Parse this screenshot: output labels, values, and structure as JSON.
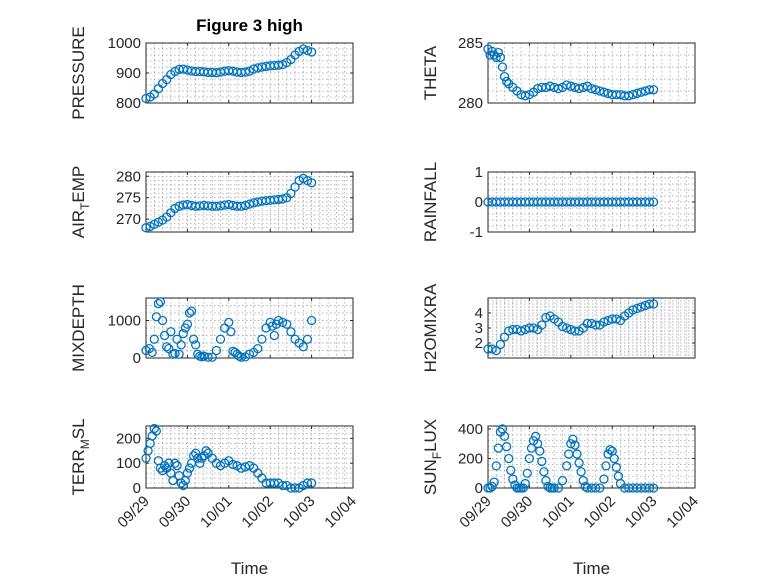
{
  "chart_data": [
    {
      "type": "scatter",
      "title": "Figure 3 high",
      "ylabel": "PRESSURE",
      "xlabel": "",
      "xlim": [
        0,
        5
      ],
      "xticks": [
        0,
        1,
        2,
        3,
        4,
        5
      ],
      "xtick_labels": [
        "09/29",
        "09/30",
        "10/01",
        "10/02",
        "10/03",
        "10/04"
      ],
      "ylim": [
        800,
        1000
      ],
      "yticks": [
        800,
        900,
        1000
      ],
      "ytick_labels": [
        "800",
        "900",
        "1000"
      ],
      "series": [
        {
          "name": "PRESSURE",
          "x": [
            0.0,
            0.1,
            0.2,
            0.3,
            0.4,
            0.5,
            0.6,
            0.7,
            0.8,
            0.9,
            1.0,
            1.1,
            1.2,
            1.3,
            1.4,
            1.5,
            1.6,
            1.7,
            1.8,
            1.9,
            2.0,
            2.1,
            2.2,
            2.3,
            2.4,
            2.5,
            2.6,
            2.7,
            2.8,
            2.9,
            3.0,
            3.1,
            3.2,
            3.3,
            3.4,
            3.5,
            3.6,
            3.7,
            3.8,
            3.9,
            4.0
          ],
          "y": [
            815,
            820,
            830,
            848,
            865,
            878,
            895,
            905,
            912,
            913,
            910,
            907,
            905,
            905,
            904,
            902,
            902,
            901,
            903,
            906,
            908,
            906,
            903,
            902,
            903,
            906,
            913,
            917,
            920,
            922,
            924,
            925,
            926,
            928,
            935,
            945,
            960,
            972,
            980,
            975,
            970
          ]
        }
      ]
    },
    {
      "type": "scatter",
      "title": "",
      "ylabel": "THETA",
      "xlabel": "",
      "xlim": [
        0,
        5
      ],
      "xticks": [
        0,
        1,
        2,
        3,
        4,
        5
      ],
      "xtick_labels": [
        "09/29",
        "09/30",
        "10/01",
        "10/02",
        "10/03",
        "10/04"
      ],
      "ylim": [
        280,
        285
      ],
      "yticks": [
        280,
        285
      ],
      "ytick_labels": [
        "280",
        "285"
      ],
      "series": [
        {
          "name": "THETA",
          "x": [
            0.0,
            0.05,
            0.1,
            0.15,
            0.2,
            0.25,
            0.3,
            0.35,
            0.4,
            0.45,
            0.5,
            0.6,
            0.7,
            0.8,
            0.9,
            1.0,
            1.1,
            1.2,
            1.3,
            1.4,
            1.5,
            1.6,
            1.7,
            1.8,
            1.9,
            2.0,
            2.1,
            2.2,
            2.3,
            2.4,
            2.5,
            2.6,
            2.7,
            2.8,
            2.9,
            3.0,
            3.1,
            3.2,
            3.3,
            3.4,
            3.5,
            3.6,
            3.7,
            3.8,
            3.9,
            4.0
          ],
          "y": [
            284.5,
            284.0,
            284.3,
            284.0,
            283.8,
            284.2,
            283.8,
            283.0,
            282.2,
            281.8,
            281.6,
            281.3,
            281.0,
            280.7,
            280.6,
            280.7,
            280.9,
            281.2,
            281.3,
            281.3,
            281.4,
            281.3,
            281.2,
            281.3,
            281.5,
            281.4,
            281.3,
            281.2,
            281.3,
            281.4,
            281.2,
            281.1,
            281.0,
            280.9,
            280.8,
            280.7,
            280.7,
            280.7,
            280.6,
            280.6,
            280.7,
            280.8,
            280.9,
            281.0,
            281.1,
            281.1
          ]
        }
      ]
    },
    {
      "type": "scatter",
      "title": "",
      "ylabel": "AIR_TEMP",
      "ylabel_display": {
        "base": "AIR",
        "sub": "T",
        "rest": "EMP"
      },
      "xlabel": "",
      "xlim": [
        0,
        5
      ],
      "xticks": [
        0,
        1,
        2,
        3,
        4,
        5
      ],
      "xtick_labels": [
        "09/29",
        "09/30",
        "10/01",
        "10/02",
        "10/03",
        "10/04"
      ],
      "ylim": [
        267,
        281
      ],
      "yticks": [
        270,
        275,
        280
      ],
      "ytick_labels": [
        "270",
        "275",
        "280"
      ],
      "series": [
        {
          "name": "AIR_TEMP",
          "x": [
            0.0,
            0.1,
            0.2,
            0.3,
            0.4,
            0.5,
            0.6,
            0.7,
            0.8,
            0.9,
            1.0,
            1.1,
            1.2,
            1.3,
            1.4,
            1.5,
            1.6,
            1.7,
            1.8,
            1.9,
            2.0,
            2.1,
            2.2,
            2.3,
            2.4,
            2.5,
            2.6,
            2.7,
            2.8,
            2.9,
            3.0,
            3.1,
            3.2,
            3.3,
            3.4,
            3.5,
            3.6,
            3.7,
            3.8,
            3.9,
            4.0
          ],
          "y": [
            268.0,
            268.3,
            268.8,
            269.3,
            269.8,
            270.5,
            271.5,
            272.5,
            273.0,
            273.3,
            273.4,
            273.2,
            273.0,
            273.1,
            273.2,
            273.1,
            273.0,
            273.0,
            273.1,
            273.3,
            273.4,
            273.2,
            273.0,
            273.0,
            273.2,
            273.5,
            273.8,
            274.0,
            274.2,
            274.3,
            274.4,
            274.5,
            274.6,
            274.7,
            275.0,
            276.0,
            277.5,
            279.0,
            279.5,
            279.0,
            278.5
          ]
        }
      ]
    },
    {
      "type": "scatter",
      "title": "",
      "ylabel": "RAINFALL",
      "xlabel": "",
      "xlim": [
        0,
        5
      ],
      "xticks": [
        0,
        1,
        2,
        3,
        4,
        5
      ],
      "xtick_labels": [
        "09/29",
        "09/30",
        "10/01",
        "10/02",
        "10/03",
        "10/04"
      ],
      "ylim": [
        -1,
        1
      ],
      "yticks": [
        -1,
        0,
        1
      ],
      "ytick_labels": [
        "-1",
        "0",
        "1"
      ],
      "series": [
        {
          "name": "RAINFALL",
          "x": [
            0.0,
            0.1,
            0.2,
            0.3,
            0.4,
            0.5,
            0.6,
            0.7,
            0.8,
            0.9,
            1.0,
            1.1,
            1.2,
            1.3,
            1.4,
            1.5,
            1.6,
            1.7,
            1.8,
            1.9,
            2.0,
            2.1,
            2.2,
            2.3,
            2.4,
            2.5,
            2.6,
            2.7,
            2.8,
            2.9,
            3.0,
            3.1,
            3.2,
            3.3,
            3.4,
            3.5,
            3.6,
            3.7,
            3.8,
            3.9,
            4.0
          ],
          "y": [
            0,
            0,
            0,
            0,
            0,
            0,
            0,
            0,
            0,
            0,
            0,
            0,
            0,
            0,
            0,
            0,
            0,
            0,
            0,
            0,
            0,
            0,
            0,
            0,
            0,
            0,
            0,
            0,
            0,
            0,
            0,
            0,
            0,
            0,
            0,
            0,
            0,
            0,
            0,
            0,
            0
          ]
        }
      ]
    },
    {
      "type": "scatter",
      "title": "",
      "ylabel": "MIXDEPTH",
      "xlabel": "",
      "xlim": [
        0,
        5
      ],
      "xticks": [
        0,
        1,
        2,
        3,
        4,
        5
      ],
      "xtick_labels": [
        "09/29",
        "09/30",
        "10/01",
        "10/02",
        "10/03",
        "10/04"
      ],
      "ylim": [
        0,
        1600
      ],
      "yticks": [
        0,
        1000
      ],
      "ytick_labels": [
        "0",
        "1000"
      ],
      "series": [
        {
          "name": "MIXDEPTH",
          "x": [
            0.0,
            0.08,
            0.15,
            0.2,
            0.25,
            0.3,
            0.35,
            0.4,
            0.45,
            0.5,
            0.55,
            0.6,
            0.65,
            0.7,
            0.75,
            0.8,
            0.85,
            0.9,
            0.95,
            1.0,
            1.05,
            1.1,
            1.15,
            1.2,
            1.25,
            1.3,
            1.35,
            1.4,
            1.5,
            1.6,
            1.7,
            1.8,
            1.9,
            2.0,
            2.05,
            2.1,
            2.15,
            2.2,
            2.25,
            2.3,
            2.4,
            2.5,
            2.6,
            2.7,
            2.8,
            2.9,
            3.0,
            3.05,
            3.1,
            3.15,
            3.2,
            3.3,
            3.4,
            3.5,
            3.6,
            3.7,
            3.8,
            3.9,
            4.0
          ],
          "y": [
            200,
            250,
            150,
            500,
            1100,
            1450,
            1500,
            1000,
            600,
            300,
            250,
            700,
            100,
            120,
            500,
            100,
            350,
            650,
            800,
            900,
            1200,
            1250,
            500,
            350,
            100,
            50,
            30,
            50,
            20,
            20,
            200,
            500,
            800,
            950,
            700,
            180,
            150,
            100,
            50,
            20,
            30,
            100,
            150,
            250,
            500,
            800,
            950,
            850,
            600,
            900,
            1000,
            950,
            900,
            700,
            500,
            400,
            300,
            500,
            1000
          ]
        }
      ]
    },
    {
      "type": "scatter",
      "title": "",
      "ylabel": "H2OMIXRA",
      "xlabel": "",
      "xlim": [
        0,
        5
      ],
      "xticks": [
        0,
        1,
        2,
        3,
        4,
        5
      ],
      "xtick_labels": [
        "09/29",
        "09/30",
        "10/01",
        "10/02",
        "10/03",
        "10/04"
      ],
      "ylim": [
        1,
        5
      ],
      "yticks": [
        2,
        3,
        4
      ],
      "ytick_labels": [
        "2",
        "3",
        "4"
      ],
      "series": [
        {
          "name": "H2OMIXRA",
          "x": [
            0.0,
            0.1,
            0.2,
            0.3,
            0.4,
            0.5,
            0.6,
            0.7,
            0.8,
            0.9,
            1.0,
            1.1,
            1.2,
            1.3,
            1.4,
            1.5,
            1.6,
            1.7,
            1.8,
            1.9,
            2.0,
            2.1,
            2.2,
            2.3,
            2.4,
            2.5,
            2.6,
            2.7,
            2.8,
            2.9,
            3.0,
            3.1,
            3.2,
            3.3,
            3.4,
            3.5,
            3.6,
            3.7,
            3.8,
            3.9,
            4.0
          ],
          "y": [
            1.6,
            1.6,
            1.5,
            1.9,
            2.4,
            2.8,
            2.9,
            2.9,
            2.8,
            2.9,
            3.0,
            3.0,
            2.9,
            3.2,
            3.7,
            3.8,
            3.6,
            3.4,
            3.1,
            3.0,
            2.9,
            2.8,
            2.8,
            3.0,
            3.3,
            3.3,
            3.2,
            3.2,
            3.4,
            3.5,
            3.6,
            3.6,
            3.5,
            3.8,
            4.0,
            4.2,
            4.3,
            4.4,
            4.5,
            4.6,
            4.6
          ]
        }
      ]
    },
    {
      "type": "scatter",
      "title": "",
      "ylabel": "TERR_MSL",
      "ylabel_display": {
        "base": "TERR",
        "sub": "M",
        "rest": "SL"
      },
      "xlabel": "Time",
      "xlim": [
        0,
        5
      ],
      "xticks": [
        0,
        1,
        2,
        3,
        4,
        5
      ],
      "xtick_labels": [
        "09/29",
        "09/30",
        "10/01",
        "10/02",
        "10/03",
        "10/04"
      ],
      "ylim": [
        0,
        250
      ],
      "yticks": [
        0,
        100,
        200
      ],
      "ytick_labels": [
        "0",
        "100",
        "200"
      ],
      "series": [
        {
          "name": "TERR_MSL",
          "x": [
            0.0,
            0.05,
            0.1,
            0.15,
            0.2,
            0.25,
            0.3,
            0.35,
            0.4,
            0.45,
            0.5,
            0.55,
            0.6,
            0.65,
            0.7,
            0.75,
            0.8,
            0.85,
            0.9,
            0.95,
            1.0,
            1.05,
            1.1,
            1.15,
            1.2,
            1.25,
            1.3,
            1.35,
            1.4,
            1.45,
            1.5,
            1.6,
            1.7,
            1.8,
            1.9,
            2.0,
            2.1,
            2.2,
            2.3,
            2.4,
            2.5,
            2.6,
            2.7,
            2.8,
            2.9,
            3.0,
            3.1,
            3.2,
            3.3,
            3.4,
            3.5,
            3.6,
            3.7,
            3.8,
            3.9,
            4.0
          ],
          "y": [
            120,
            150,
            180,
            210,
            240,
            230,
            110,
            80,
            70,
            90,
            80,
            100,
            60,
            30,
            100,
            90,
            50,
            20,
            10,
            30,
            60,
            80,
            100,
            130,
            140,
            120,
            100,
            120,
            130,
            150,
            140,
            120,
            100,
            90,
            100,
            110,
            95,
            90,
            80,
            85,
            90,
            80,
            60,
            40,
            20,
            20,
            20,
            20,
            10,
            10,
            0,
            0,
            0,
            10,
            20,
            20
          ]
        }
      ]
    },
    {
      "type": "scatter",
      "title": "",
      "ylabel": "SUN_FLUX",
      "ylabel_display": {
        "base": "SUN",
        "sub": "F",
        "rest": "LUX"
      },
      "xlabel": "Time",
      "xlim": [
        0,
        5
      ],
      "xticks": [
        0,
        1,
        2,
        3,
        4,
        5
      ],
      "xtick_labels": [
        "09/29",
        "09/30",
        "10/01",
        "10/02",
        "10/03",
        "10/04"
      ],
      "ylim": [
        0,
        420
      ],
      "yticks": [
        0,
        200,
        400
      ],
      "ytick_labels": [
        "0",
        "200",
        "400"
      ],
      "series": [
        {
          "name": "SUN_FLUX",
          "x": [
            0.0,
            0.05,
            0.1,
            0.15,
            0.2,
            0.25,
            0.3,
            0.35,
            0.4,
            0.45,
            0.5,
            0.55,
            0.6,
            0.65,
            0.7,
            0.75,
            0.8,
            0.85,
            0.9,
            0.95,
            1.0,
            1.05,
            1.1,
            1.15,
            1.2,
            1.25,
            1.3,
            1.35,
            1.4,
            1.45,
            1.5,
            1.55,
            1.6,
            1.7,
            1.8,
            1.9,
            1.95,
            2.0,
            2.05,
            2.1,
            2.15,
            2.2,
            2.25,
            2.3,
            2.35,
            2.4,
            2.5,
            2.6,
            2.7,
            2.8,
            2.85,
            2.9,
            2.95,
            3.0,
            3.05,
            3.1,
            3.15,
            3.2,
            3.3,
            3.4,
            3.5,
            3.6,
            3.7,
            3.8,
            3.9,
            4.0
          ],
          "y": [
            0,
            0,
            10,
            40,
            150,
            270,
            380,
            400,
            350,
            280,
            200,
            120,
            60,
            20,
            0,
            0,
            0,
            0,
            30,
            100,
            200,
            270,
            320,
            350,
            300,
            250,
            180,
            110,
            50,
            10,
            0,
            0,
            0,
            0,
            50,
            150,
            230,
            300,
            330,
            290,
            230,
            170,
            110,
            50,
            10,
            0,
            0,
            0,
            0,
            60,
            150,
            230,
            260,
            250,
            200,
            140,
            80,
            30,
            0,
            0,
            0,
            0,
            0,
            0,
            0,
            0
          ]
        }
      ]
    }
  ]
}
